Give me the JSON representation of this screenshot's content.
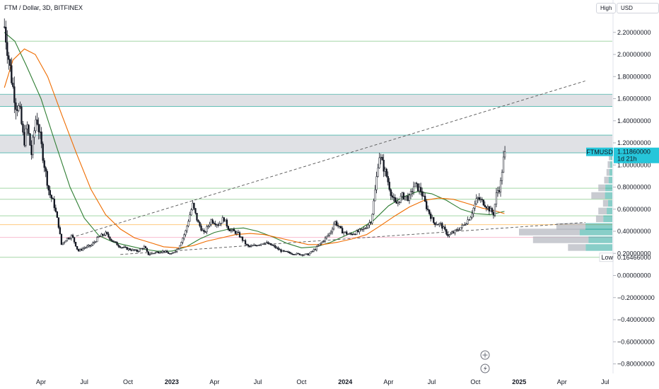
{
  "chart_data": {
    "type": "candlestick",
    "title": "FTM / Dollar, 3D, BITFINEX",
    "symbol": "FTMUSD",
    "last_price": "1.11860000",
    "countdown": "1d 21h",
    "low_label": "Low",
    "low_value": "0.16466000",
    "high_label": "High",
    "currency": "USD",
    "ylim": [
      -0.9,
      2.33
    ],
    "y_ticks": [
      -0.8,
      -0.6,
      -0.4,
      -0.2,
      0.0,
      0.2,
      0.4,
      0.6,
      0.8,
      1.0,
      1.2,
      1.4,
      1.6,
      1.8,
      2.0,
      2.2
    ],
    "y_tick_labels": [
      "−0.80000000",
      "−0.60000000",
      "−0.40000000",
      "−0.20000000",
      "0.00000000",
      "0.20000000",
      "0.40000000",
      "0.60000000",
      "0.80000000",
      "1.00000000",
      "1.20000000",
      "1.40000000",
      "1.60000000",
      "1.80000000",
      "2.00000000",
      "2.20000000"
    ],
    "x_ticks": [
      {
        "date": "2022-04-01",
        "label": "Apr",
        "bold": false
      },
      {
        "date": "2022-07-01",
        "label": "Jul",
        "bold": false
      },
      {
        "date": "2022-10-01",
        "label": "Oct",
        "bold": false
      },
      {
        "date": "2023-01-01",
        "label": "2023",
        "bold": true
      },
      {
        "date": "2023-04-01",
        "label": "Apr",
        "bold": false
      },
      {
        "date": "2023-07-01",
        "label": "Jul",
        "bold": false
      },
      {
        "date": "2023-10-01",
        "label": "Oct",
        "bold": false
      },
      {
        "date": "2024-01-01",
        "label": "2024",
        "bold": true
      },
      {
        "date": "2024-04-01",
        "label": "Apr",
        "bold": false
      },
      {
        "date": "2024-07-01",
        "label": "Jul",
        "bold": false
      },
      {
        "date": "2024-10-01",
        "label": "Oct",
        "bold": false
      },
      {
        "date": "2025-01-01",
        "label": "2025",
        "bold": true
      },
      {
        "date": "2025-04-01",
        "label": "Apr",
        "bold": false
      },
      {
        "date": "2025-07-01",
        "label": "Jul",
        "bold": false
      }
    ],
    "price_path": [
      [
        "2022-01-14",
        2.25
      ],
      [
        "2022-01-22",
        2.0
      ],
      [
        "2022-01-30",
        1.75
      ],
      [
        "2022-02-07",
        1.55
      ],
      [
        "2022-02-15",
        1.5
      ],
      [
        "2022-02-24",
        1.2
      ],
      [
        "2022-03-03",
        1.35
      ],
      [
        "2022-03-12",
        1.1
      ],
      [
        "2022-03-22",
        1.45
      ],
      [
        "2022-03-30",
        1.25
      ],
      [
        "2022-04-08",
        1.0
      ],
      [
        "2022-04-18",
        0.75
      ],
      [
        "2022-04-28",
        0.65
      ],
      [
        "2022-05-08",
        0.45
      ],
      [
        "2022-05-14",
        0.28
      ],
      [
        "2022-05-24",
        0.33
      ],
      [
        "2022-06-05",
        0.36
      ],
      [
        "2022-06-18",
        0.22
      ],
      [
        "2022-06-30",
        0.25
      ],
      [
        "2022-07-15",
        0.27
      ],
      [
        "2022-08-01",
        0.35
      ],
      [
        "2022-08-15",
        0.38
      ],
      [
        "2022-08-30",
        0.31
      ],
      [
        "2022-09-15",
        0.26
      ],
      [
        "2022-10-01",
        0.24
      ],
      [
        "2022-10-20",
        0.22
      ],
      [
        "2022-11-05",
        0.26
      ],
      [
        "2022-11-12",
        0.19
      ],
      [
        "2022-11-30",
        0.21
      ],
      [
        "2022-12-15",
        0.22
      ],
      [
        "2022-12-31",
        0.19
      ],
      [
        "2023-01-15",
        0.25
      ],
      [
        "2023-01-30",
        0.4
      ],
      [
        "2023-02-08",
        0.55
      ],
      [
        "2023-02-14",
        0.64
      ],
      [
        "2023-02-25",
        0.48
      ],
      [
        "2023-03-10",
        0.38
      ],
      [
        "2023-03-25",
        0.5
      ],
      [
        "2023-04-10",
        0.46
      ],
      [
        "2023-04-20",
        0.52
      ],
      [
        "2023-05-01",
        0.42
      ],
      [
        "2023-05-20",
        0.38
      ],
      [
        "2023-06-10",
        0.26
      ],
      [
        "2023-06-25",
        0.27
      ],
      [
        "2023-07-15",
        0.3
      ],
      [
        "2023-08-01",
        0.27
      ],
      [
        "2023-08-20",
        0.22
      ],
      [
        "2023-09-10",
        0.2
      ],
      [
        "2023-10-01",
        0.19
      ],
      [
        "2023-10-15",
        0.19
      ],
      [
        "2023-10-30",
        0.24
      ],
      [
        "2023-11-15",
        0.31
      ],
      [
        "2023-12-01",
        0.39
      ],
      [
        "2023-12-10",
        0.49
      ],
      [
        "2023-12-25",
        0.4
      ],
      [
        "2024-01-10",
        0.37
      ],
      [
        "2024-01-25",
        0.39
      ],
      [
        "2024-02-10",
        0.42
      ],
      [
        "2024-02-25",
        0.5
      ],
      [
        "2024-03-05",
        0.8
      ],
      [
        "2024-03-12",
        1.1
      ],
      [
        "2024-03-20",
        1.0
      ],
      [
        "2024-03-28",
        0.9
      ],
      [
        "2024-04-08",
        0.72
      ],
      [
        "2024-04-16",
        0.64
      ],
      [
        "2024-04-30",
        0.72
      ],
      [
        "2024-05-15",
        0.7
      ],
      [
        "2024-05-25",
        0.82
      ],
      [
        "2024-06-08",
        0.77
      ],
      [
        "2024-06-20",
        0.62
      ],
      [
        "2024-07-05",
        0.48
      ],
      [
        "2024-07-20",
        0.46
      ],
      [
        "2024-08-05",
        0.36
      ],
      [
        "2024-08-20",
        0.4
      ],
      [
        "2024-09-05",
        0.45
      ],
      [
        "2024-09-20",
        0.53
      ],
      [
        "2024-10-05",
        0.7
      ],
      [
        "2024-10-18",
        0.66
      ],
      [
        "2024-10-30",
        0.6
      ],
      [
        "2024-11-08",
        0.56
      ],
      [
        "2024-11-15",
        0.76
      ],
      [
        "2024-11-22",
        0.8
      ],
      [
        "2024-11-28",
        1.03
      ],
      [
        "2024-12-03",
        1.1186
      ]
    ],
    "series": [
      {
        "name": "",
        "color": "#2e7d32",
        "points": [
          [
            "2022-01-14",
            2.2
          ],
          [
            "2022-02-05",
            2.12
          ],
          [
            "2022-03-01",
            1.9
          ],
          [
            "2022-04-01",
            1.6
          ],
          [
            "2022-05-01",
            1.2
          ],
          [
            "2022-06-01",
            0.8
          ],
          [
            "2022-07-01",
            0.52
          ],
          [
            "2022-08-01",
            0.36
          ],
          [
            "2022-09-01",
            0.3
          ],
          [
            "2022-10-01",
            0.27
          ],
          [
            "2022-11-01",
            0.24
          ],
          [
            "2022-12-01",
            0.22
          ],
          [
            "2023-01-01",
            0.22
          ],
          [
            "2023-02-01",
            0.26
          ],
          [
            "2023-03-01",
            0.33
          ],
          [
            "2023-04-01",
            0.39
          ],
          [
            "2023-05-01",
            0.42
          ],
          [
            "2023-06-01",
            0.43
          ],
          [
            "2023-07-01",
            0.4
          ],
          [
            "2023-08-01",
            0.35
          ],
          [
            "2023-09-01",
            0.29
          ],
          [
            "2023-10-01",
            0.25
          ],
          [
            "2023-11-01",
            0.26
          ],
          [
            "2023-12-01",
            0.3
          ],
          [
            "2024-01-01",
            0.36
          ],
          [
            "2024-02-01",
            0.42
          ],
          [
            "2024-03-01",
            0.5
          ],
          [
            "2024-04-01",
            0.63
          ],
          [
            "2024-05-01",
            0.71
          ],
          [
            "2024-06-01",
            0.76
          ],
          [
            "2024-07-01",
            0.74
          ],
          [
            "2024-08-01",
            0.68
          ],
          [
            "2024-09-01",
            0.6
          ],
          [
            "2024-10-01",
            0.56
          ],
          [
            "2024-11-01",
            0.55
          ],
          [
            "2024-12-01",
            0.58
          ]
        ]
      },
      {
        "name": "",
        "color": "#ef6c00",
        "points": [
          [
            "2022-01-14",
            1.7
          ],
          [
            "2022-02-01",
            1.95
          ],
          [
            "2022-02-25",
            2.05
          ],
          [
            "2022-03-20",
            2.0
          ],
          [
            "2022-04-15",
            1.8
          ],
          [
            "2022-05-15",
            1.45
          ],
          [
            "2022-06-15",
            1.1
          ],
          [
            "2022-07-15",
            0.78
          ],
          [
            "2022-08-15",
            0.55
          ],
          [
            "2022-09-15",
            0.42
          ],
          [
            "2022-10-15",
            0.34
          ],
          [
            "2022-11-15",
            0.3
          ],
          [
            "2022-12-15",
            0.26
          ],
          [
            "2023-01-15",
            0.25
          ],
          [
            "2023-02-15",
            0.27
          ],
          [
            "2023-03-15",
            0.31
          ],
          [
            "2023-04-15",
            0.34
          ],
          [
            "2023-05-15",
            0.37
          ],
          [
            "2023-06-15",
            0.38
          ],
          [
            "2023-07-15",
            0.37
          ],
          [
            "2023-08-15",
            0.34
          ],
          [
            "2023-09-15",
            0.31
          ],
          [
            "2023-10-15",
            0.28
          ],
          [
            "2023-11-15",
            0.28
          ],
          [
            "2023-12-15",
            0.3
          ],
          [
            "2024-01-15",
            0.33
          ],
          [
            "2024-02-15",
            0.37
          ],
          [
            "2024-03-15",
            0.45
          ],
          [
            "2024-04-15",
            0.54
          ],
          [
            "2024-05-15",
            0.62
          ],
          [
            "2024-06-15",
            0.68
          ],
          [
            "2024-07-15",
            0.7
          ],
          [
            "2024-08-15",
            0.69
          ],
          [
            "2024-09-15",
            0.65
          ],
          [
            "2024-10-15",
            0.61
          ],
          [
            "2024-11-15",
            0.58
          ],
          [
            "2024-12-01",
            0.56
          ]
        ]
      }
    ],
    "zones": [
      {
        "from": 1.11,
        "to": 1.27,
        "color": "#dadce0"
      },
      {
        "from": 1.53,
        "to": 1.64,
        "color": "#dadce0"
      }
    ],
    "horizontal_levels": [
      {
        "value": 2.12,
        "color": "#a5d6a7"
      },
      {
        "value": 0.79,
        "color": "#a5d6a7"
      },
      {
        "value": 0.69,
        "color": "#a5d6a7"
      },
      {
        "value": 0.54,
        "color": "#a5d6a7"
      },
      {
        "value": 0.46,
        "color": "#ffcc80"
      },
      {
        "value": 0.345,
        "color": "#f8bbd0"
      },
      {
        "value": 0.165,
        "color": "#a5d6a7"
      }
    ],
    "trendlines": [
      {
        "from": [
          "2022-05-25",
          0.33
        ],
        "to": [
          "2025-05-20",
          1.76
        ],
        "color": "#555555",
        "dashed": true
      },
      {
        "from": [
          "2022-09-15",
          0.19
        ],
        "to": [
          "2025-05-20",
          0.48
        ],
        "color": "#555555",
        "dashed": true
      }
    ],
    "volume_profile": [
      {
        "price": 0.25,
        "volume": 0.38,
        "green": 0.6
      },
      {
        "price": 0.32,
        "volume": 0.68,
        "green": 0.3
      },
      {
        "price": 0.39,
        "volume": 0.8,
        "green": 0.35
      },
      {
        "price": 0.44,
        "volume": 0.48,
        "green": 0.48
      },
      {
        "price": 0.51,
        "volume": 0.14,
        "green": 0.55
      },
      {
        "price": 0.58,
        "volume": 0.12,
        "green": 0.4
      },
      {
        "price": 0.65,
        "volume": 0.08,
        "green": 0.45
      },
      {
        "price": 0.72,
        "volume": 0.18,
        "green": 0.35
      },
      {
        "price": 0.79,
        "volume": 0.12,
        "green": 0.5
      },
      {
        "price": 0.86,
        "volume": 0.07,
        "green": 0.45
      },
      {
        "price": 0.93,
        "volume": 0.05,
        "green": 0.5
      },
      {
        "price": 1.0,
        "volume": 0.04,
        "green": 0.5
      },
      {
        "price": 1.07,
        "volume": 0.03,
        "green": 0.5
      }
    ]
  }
}
